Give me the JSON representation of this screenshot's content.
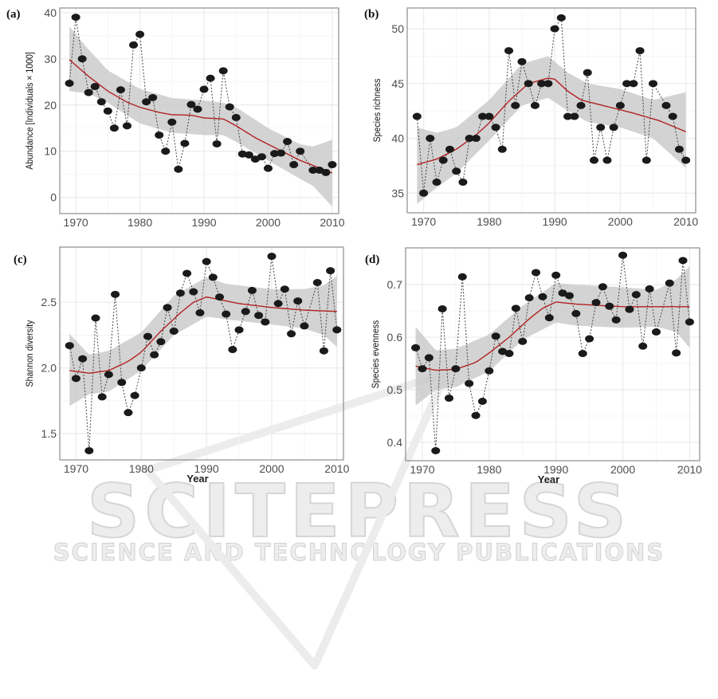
{
  "watermark": {
    "title": "SCITEPRESS",
    "subtitle": "SCIENCE AND TECHNOLOGY PUBLICATIONS"
  },
  "chart_data": [
    {
      "type": "scatter",
      "panel_label": "(a)",
      "title": "",
      "xlabel": "",
      "ylabel": "Abundance [Individuals × 1000]",
      "xlim": [
        1967.5,
        2011
      ],
      "ylim": [
        -3.5,
        41
      ],
      "xticks": [
        1970,
        1980,
        1990,
        2000,
        2010
      ],
      "yticks": [
        0,
        10,
        20,
        30,
        40
      ],
      "x": [
        1969,
        1970,
        1971,
        1972,
        1973,
        1974,
        1975,
        1976,
        1977,
        1978,
        1979,
        1980,
        1981,
        1982,
        1983,
        1984,
        1985,
        1986,
        1987,
        1988,
        1989,
        1990,
        1991,
        1992,
        1993,
        1994,
        1995,
        1996,
        1997,
        1998,
        1999,
        2000,
        2001,
        2002,
        2003,
        2004,
        2005,
        2007,
        2008,
        2009,
        2010
      ],
      "y": [
        24.7,
        39,
        30,
        22.7,
        24,
        20.7,
        18.7,
        15,
        23.3,
        15.5,
        33,
        35.3,
        20.7,
        21.6,
        13.5,
        10,
        16.3,
        6.1,
        11.7,
        20.1,
        19.1,
        23.4,
        25.8,
        11.6,
        27.4,
        19.6,
        17.3,
        9.4,
        9.2,
        8.3,
        8.8,
        6.3,
        9.5,
        9.6,
        12.1,
        7.1,
        10,
        5.9,
        5.9,
        5.4,
        7.1
      ],
      "smooth": {
        "x": [
          1969,
          1972,
          1975,
          1978,
          1980,
          1983,
          1985,
          1988,
          1990,
          1993,
          1995,
          1998,
          2000,
          2003,
          2005,
          2008,
          2010
        ],
        "y": [
          29.8,
          26.2,
          23,
          20.6,
          19.5,
          18.4,
          17.9,
          17.8,
          17.2,
          17,
          15.5,
          12.9,
          11.5,
          9.4,
          8,
          6.4,
          5.3
        ]
      },
      "band": {
        "x": [
          1969,
          1972,
          1975,
          1980,
          1985,
          1990,
          1993,
          1995,
          2000,
          2005,
          2007,
          2010
        ],
        "lower": [
          23,
          22.5,
          20.5,
          16,
          14,
          13.5,
          13.5,
          12,
          8,
          4,
          2.5,
          -2
        ],
        "upper": [
          37,
          32,
          27.5,
          23.5,
          21.5,
          21,
          20.5,
          19.5,
          15,
          11.5,
          11,
          12.5
        ]
      }
    },
    {
      "type": "scatter",
      "panel_label": "(b)",
      "title": "",
      "xlabel": "",
      "ylabel": "Species richness",
      "xlim": [
        1967.5,
        2011.5
      ],
      "ylim": [
        33.2,
        51.9
      ],
      "xticks": [
        1970,
        1980,
        1990,
        2000,
        2010
      ],
      "yticks": [
        35,
        40,
        45,
        50
      ],
      "x": [
        1969,
        1970,
        1971,
        1972,
        1973,
        1974,
        1975,
        1976,
        1977,
        1978,
        1979,
        1980,
        1981,
        1982,
        1983,
        1984,
        1985,
        1986,
        1987,
        1988,
        1989,
        1990,
        1991,
        1992,
        1993,
        1994,
        1995,
        1996,
        1997,
        1998,
        1999,
        2000,
        2001,
        2002,
        2003,
        2004,
        2005,
        2007,
        2008,
        2009,
        2010
      ],
      "y": [
        42,
        35,
        40,
        36,
        38,
        39,
        37,
        36,
        40,
        40,
        42,
        42,
        41,
        39,
        48,
        43,
        47,
        45,
        43,
        45,
        45,
        50,
        51,
        42,
        42,
        43,
        46,
        38,
        41,
        38,
        41,
        43,
        45,
        45,
        48,
        38,
        45,
        43,
        42,
        39,
        38
      ],
      "smooth": {
        "x": [
          1969,
          1972,
          1975,
          1978,
          1980,
          1983,
          1986,
          1989,
          1990,
          1992,
          1994,
          1998,
          2002,
          2006,
          2010
        ],
        "y": [
          37.6,
          38.1,
          39,
          40.3,
          41.4,
          43.4,
          45,
          45.5,
          45.4,
          44.3,
          43.5,
          42.9,
          42.3,
          41.6,
          40.6
        ]
      },
      "band": {
        "x": [
          1969,
          1972,
          1975,
          1980,
          1985,
          1989,
          1992,
          1995,
          2000,
          2005,
          2010
        ],
        "lower": [
          34,
          35.5,
          36.8,
          39.8,
          43,
          43.7,
          42.5,
          41.5,
          41,
          40,
          37.3
        ],
        "upper": [
          41,
          40.5,
          41,
          43.5,
          46.8,
          47.5,
          46,
          45,
          44.5,
          43.5,
          44.2
        ]
      }
    },
    {
      "type": "scatter",
      "panel_label": "(c)",
      "title": "",
      "xlabel": "Year",
      "ylabel": "Shannon diversity",
      "xlim": [
        1967.5,
        2011
      ],
      "ylim": [
        1.3,
        2.92
      ],
      "xticks": [
        1970,
        1980,
        1990,
        2000,
        2010
      ],
      "yticks": [
        1.5,
        2.0,
        2.5
      ],
      "ytick_labels": [
        "1.5",
        "2.0",
        "2.5"
      ],
      "x": [
        1969,
        1970,
        1971,
        1972,
        1973,
        1974,
        1975,
        1976,
        1977,
        1978,
        1979,
        1980,
        1981,
        1982,
        1983,
        1984,
        1985,
        1986,
        1987,
        1988,
        1989,
        1990,
        1991,
        1992,
        1993,
        1994,
        1995,
        1996,
        1997,
        1998,
        1999,
        2000,
        2001,
        2002,
        2003,
        2004,
        2005,
        2007,
        2008,
        2009,
        2010
      ],
      "y": [
        2.17,
        1.92,
        2.07,
        1.37,
        2.38,
        1.78,
        1.95,
        2.56,
        1.89,
        1.66,
        1.79,
        2.0,
        2.24,
        2.1,
        2.2,
        2.46,
        2.28,
        2.57,
        2.72,
        2.58,
        2.42,
        2.81,
        2.69,
        2.54,
        2.41,
        2.14,
        2.29,
        2.43,
        2.59,
        2.4,
        2.35,
        2.85,
        2.49,
        2.6,
        2.26,
        2.51,
        2.32,
        2.65,
        2.13,
        2.74,
        2.29
      ],
      "smooth": {
        "x": [
          1969,
          1972,
          1975,
          1978,
          1980,
          1983,
          1986,
          1988,
          1990,
          1992,
          1995,
          2000,
          2005,
          2010
        ],
        "y": [
          1.98,
          1.96,
          1.98,
          2.05,
          2.12,
          2.28,
          2.42,
          2.5,
          2.54,
          2.52,
          2.49,
          2.46,
          2.44,
          2.43
        ]
      },
      "band": {
        "x": [
          1969,
          1972,
          1975,
          1980,
          1985,
          1990,
          1993,
          2000,
          2005,
          2008,
          2010
        ],
        "lower": [
          1.71,
          1.8,
          1.82,
          1.98,
          2.25,
          2.39,
          2.37,
          2.33,
          2.3,
          2.25,
          2.16
        ],
        "upper": [
          2.26,
          2.1,
          2.13,
          2.27,
          2.55,
          2.69,
          2.64,
          2.6,
          2.6,
          2.63,
          2.7
        ]
      }
    },
    {
      "type": "scatter",
      "panel_label": "(d)",
      "title": "",
      "xlabel": "Year",
      "ylabel": "Species evenness",
      "xlim": [
        1967.5,
        2011.5
      ],
      "ylim": [
        0.365,
        0.77
      ],
      "xticks": [
        1970,
        1980,
        1990,
        2000,
        2010
      ],
      "yticks": [
        0.4,
        0.5,
        0.6,
        0.7
      ],
      "x": [
        1969,
        1970,
        1971,
        1972,
        1973,
        1974,
        1975,
        1976,
        1977,
        1978,
        1979,
        1980,
        1981,
        1982,
        1983,
        1984,
        1985,
        1986,
        1987,
        1988,
        1989,
        1990,
        1991,
        1992,
        1993,
        1994,
        1995,
        1996,
        1997,
        1998,
        1999,
        2000,
        2001,
        2002,
        2003,
        2004,
        2005,
        2007,
        2008,
        2009,
        2010
      ],
      "y": [
        0.58,
        0.54,
        0.561,
        0.384,
        0.654,
        0.484,
        0.54,
        0.715,
        0.512,
        0.451,
        0.478,
        0.536,
        0.602,
        0.573,
        0.569,
        0.655,
        0.592,
        0.675,
        0.723,
        0.677,
        0.637,
        0.718,
        0.684,
        0.679,
        0.645,
        0.569,
        0.597,
        0.666,
        0.696,
        0.659,
        0.633,
        0.756,
        0.653,
        0.681,
        0.583,
        0.692,
        0.61,
        0.703,
        0.57,
        0.746,
        0.629
      ],
      "smooth": {
        "x": [
          1969,
          1972,
          1975,
          1978,
          1980,
          1983,
          1986,
          1988,
          1990,
          1993,
          2000,
          2010
        ],
        "y": [
          0.545,
          0.537,
          0.539,
          0.552,
          0.57,
          0.6,
          0.635,
          0.655,
          0.667,
          0.663,
          0.658,
          0.658
        ]
      },
      "band": {
        "x": [
          1969,
          1972,
          1975,
          1980,
          1985,
          1990,
          1993,
          2000,
          2005,
          2008,
          2010
        ],
        "lower": [
          0.47,
          0.5,
          0.505,
          0.535,
          0.595,
          0.628,
          0.622,
          0.618,
          0.62,
          0.61,
          0.58
        ],
        "upper": [
          0.62,
          0.575,
          0.578,
          0.605,
          0.66,
          0.703,
          0.7,
          0.695,
          0.69,
          0.71,
          0.735
        ]
      }
    }
  ]
}
